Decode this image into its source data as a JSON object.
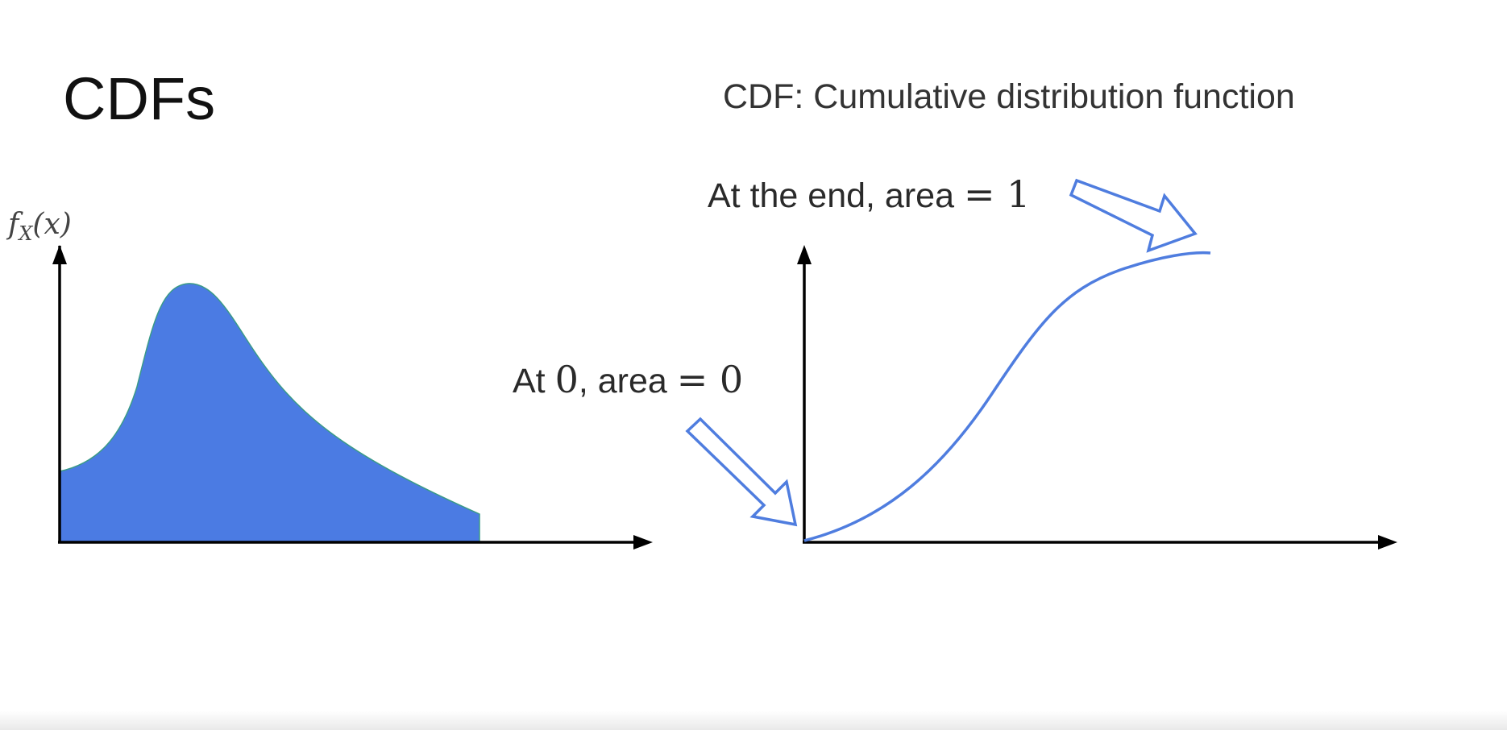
{
  "slide": {
    "title": "CDFs",
    "subtitle": "CDF: Cumulative distribution function"
  },
  "pdf_plot": {
    "ylabel_f": "f",
    "ylabel_sub": "X",
    "ylabel_arg": "(x)"
  },
  "cdf_plot": {
    "annotation_start": {
      "text": "At ",
      "math1": "0",
      "text2": ", area ",
      "math2": "= 0"
    },
    "annotation_end": {
      "text": "At the end, area ",
      "math": "= 1"
    }
  },
  "colors": {
    "fill": "#4b7be3",
    "curve": "#4f7ddf",
    "axis": "#000000",
    "text": "#2a2a2a"
  }
}
